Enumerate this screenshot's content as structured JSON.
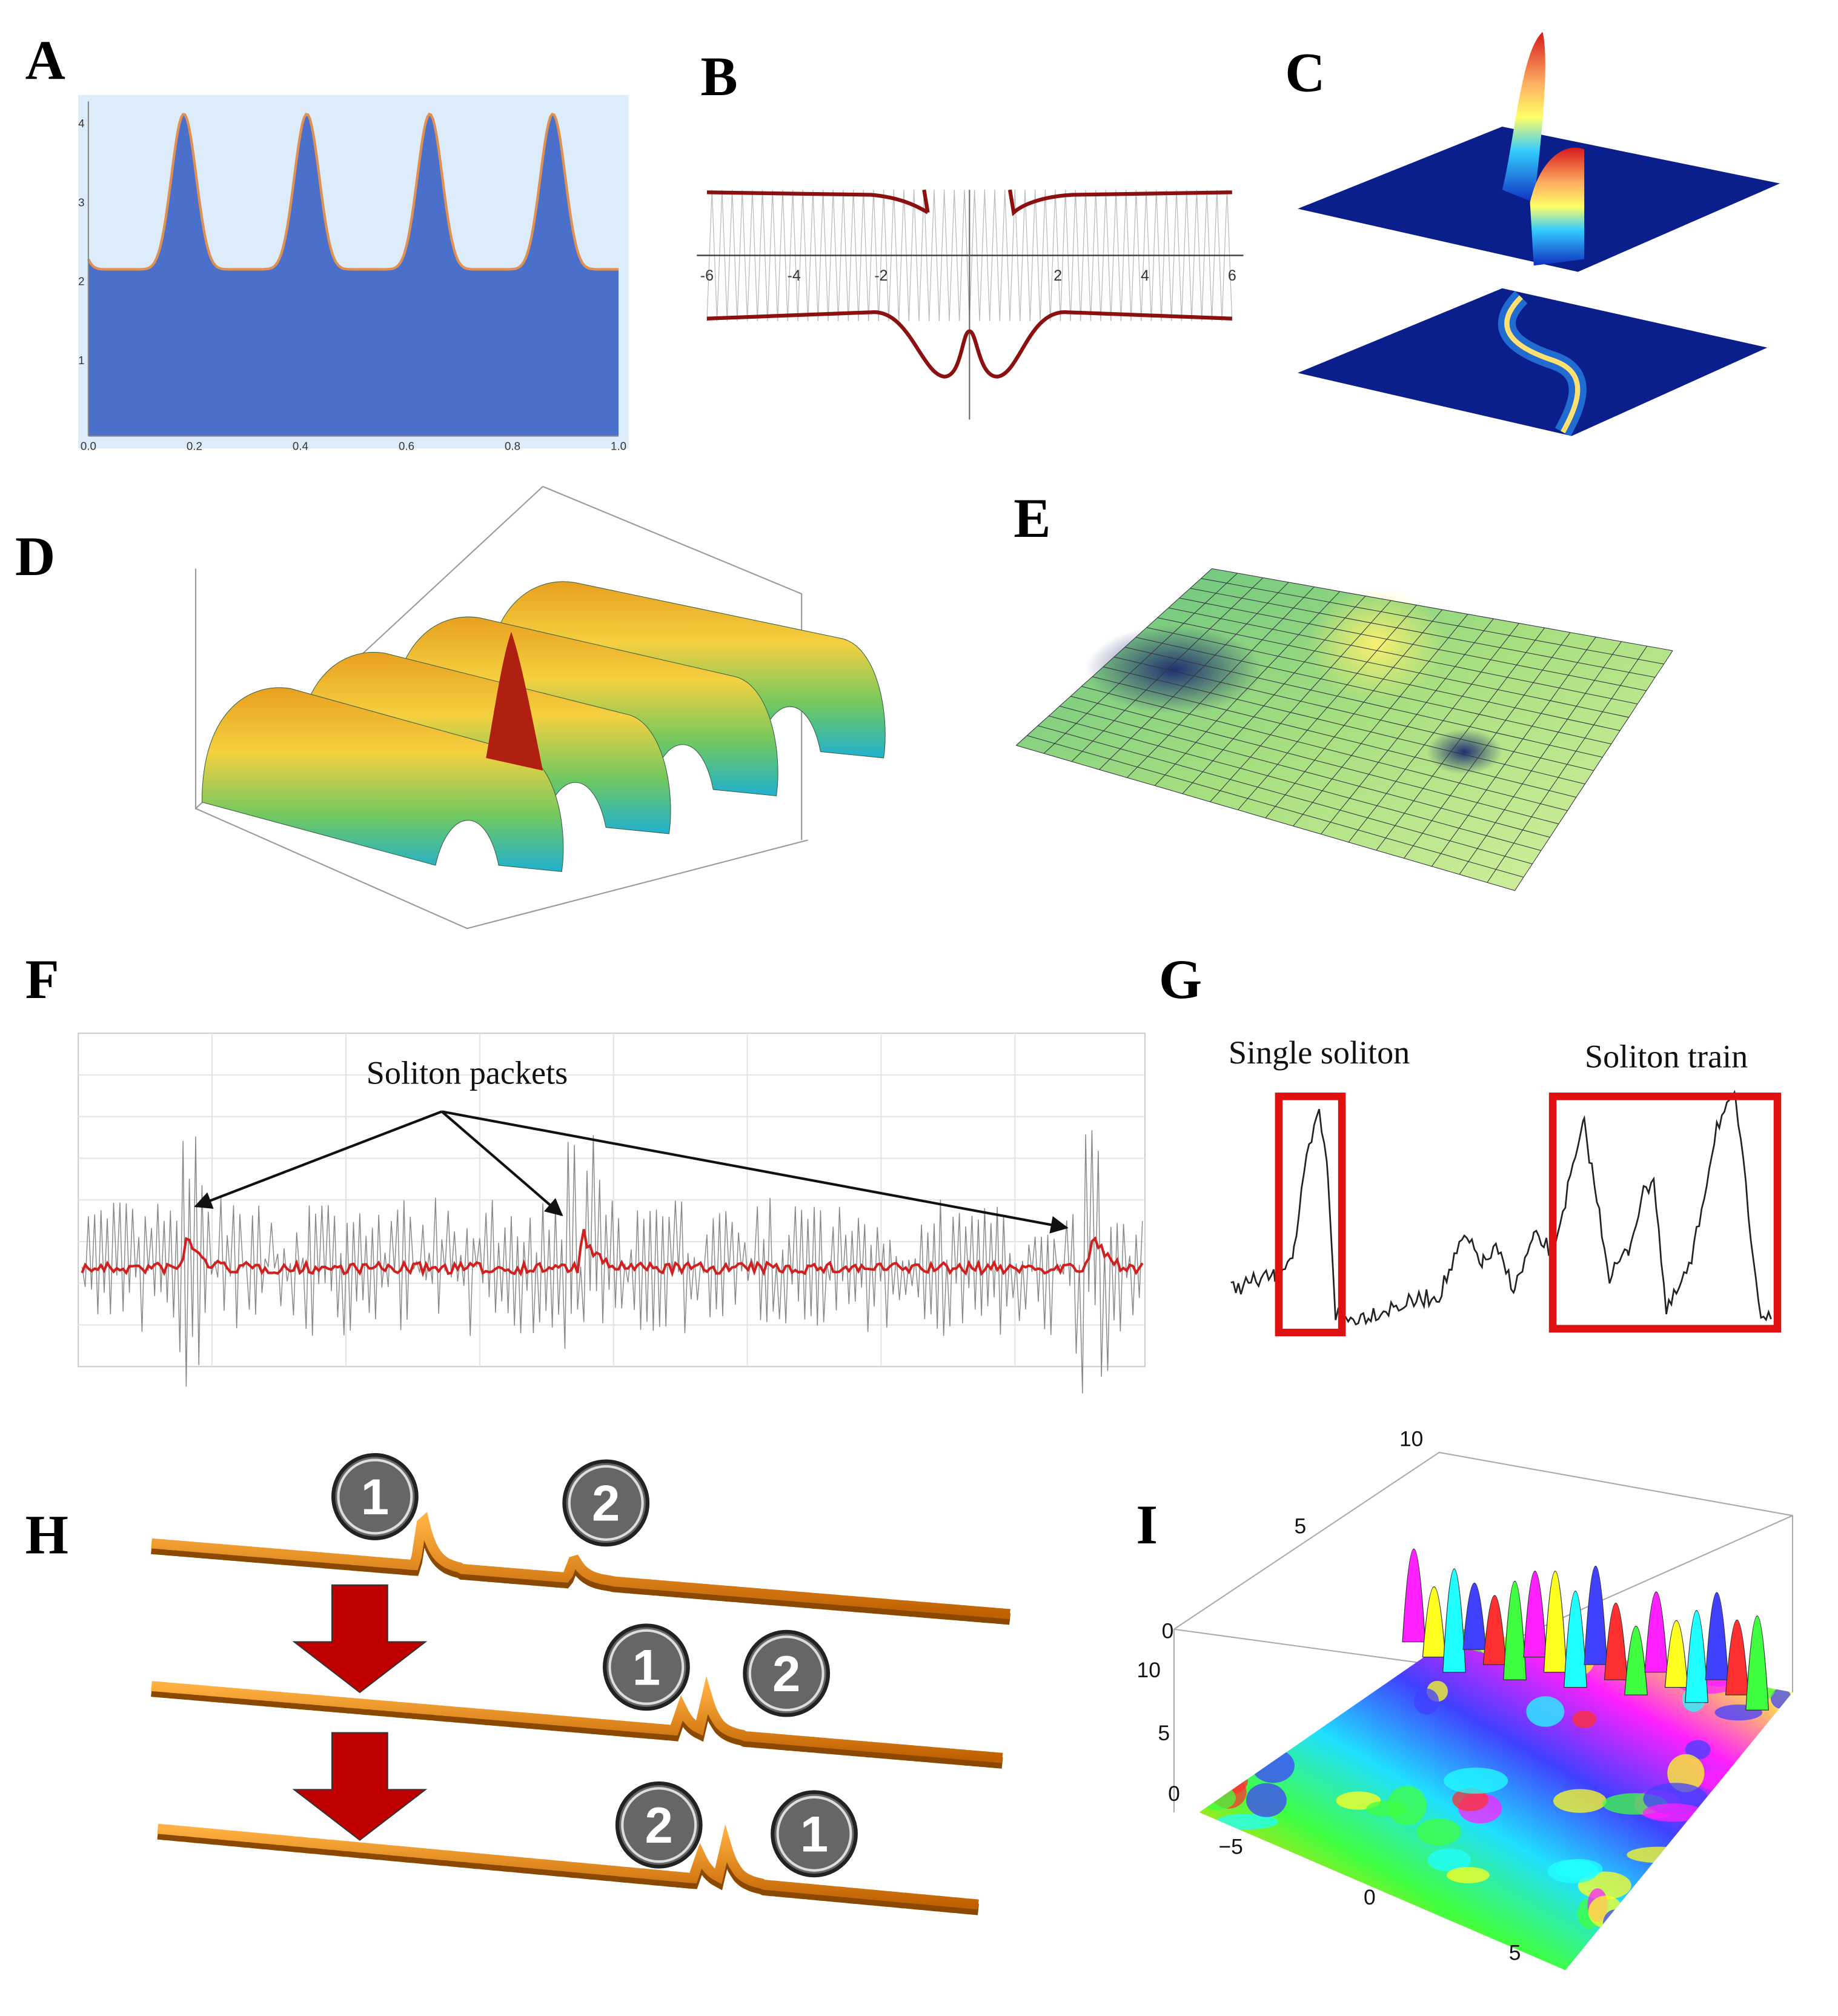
{
  "panels": [
    {
      "label": "A",
      "x_ticks": [
        "0.0",
        "0.2",
        "0.4",
        "0.6",
        "0.8",
        "1.0"
      ],
      "y_ticks": [
        "1",
        "2",
        "3",
        "4"
      ]
    },
    {
      "label": "B",
      "x_ticks": [
        "-6",
        "-4",
        "-2",
        "2",
        "4",
        "6"
      ]
    },
    {
      "label": "C"
    },
    {
      "label": "D"
    },
    {
      "label": "E"
    },
    {
      "label": "F",
      "annotation": "Soliton packets"
    },
    {
      "label": "G",
      "annotations": [
        "Single soliton",
        "Soliton train"
      ]
    },
    {
      "label": "H",
      "steps": [
        [
          "1",
          "2"
        ],
        [
          "1",
          "2"
        ],
        [
          "2",
          "1"
        ]
      ]
    },
    {
      "label": "I",
      "ticks": [
        "10",
        "5",
        "0",
        "10",
        "5",
        "0",
        "−5",
        "0",
        "5"
      ]
    }
  ]
}
